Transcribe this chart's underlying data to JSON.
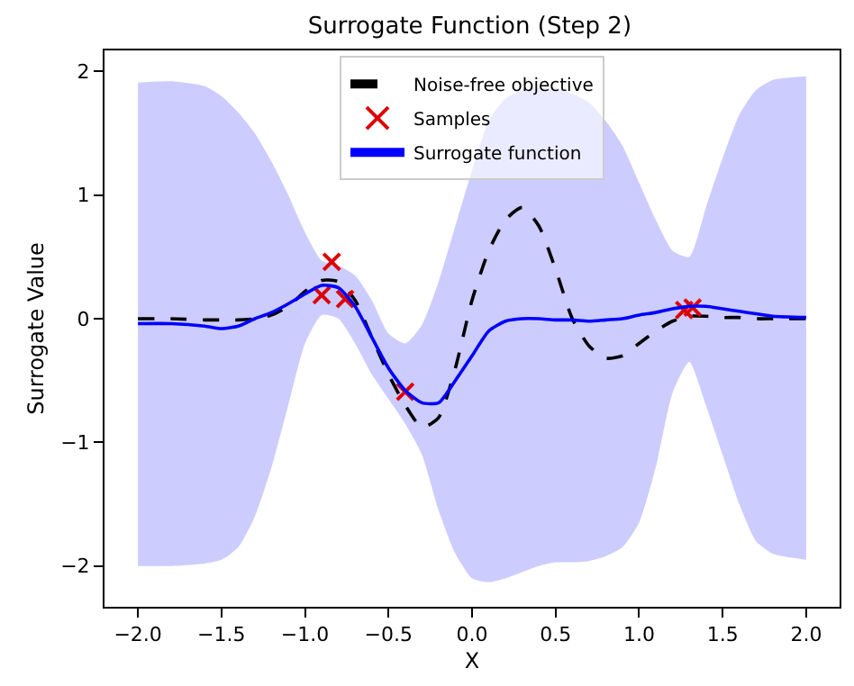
{
  "chart_data": {
    "type": "line",
    "title": "Surrogate Function (Step 2)",
    "xlabel": "X",
    "ylabel": "Surrogate Value",
    "x": [
      -2,
      -1.8,
      -1.6,
      -1.5,
      -1.4,
      -1.3,
      -1.2,
      -1.1,
      -1.0,
      -0.9,
      -0.8,
      -0.7,
      -0.6,
      -0.5,
      -0.4,
      -0.3,
      -0.2,
      -0.1,
      0,
      0.1,
      0.2,
      0.3,
      0.4,
      0.5,
      0.6,
      0.7,
      0.8,
      0.9,
      1.0,
      1.1,
      1.2,
      1.3,
      1.4,
      1.5,
      1.6,
      1.7,
      1.8,
      2.0
    ],
    "series": [
      {
        "name": "Noise-free objective",
        "color": "#000000",
        "line_style": "dashed",
        "values": [
          0.0,
          0.0,
          -0.01,
          -0.01,
          -0.01,
          0.0,
          0.03,
          0.1,
          0.22,
          0.31,
          0.3,
          0.15,
          -0.15,
          -0.45,
          -0.7,
          -0.88,
          -0.8,
          -0.4,
          0.15,
          0.55,
          0.8,
          0.9,
          0.75,
          0.4,
          0.0,
          -0.22,
          -0.32,
          -0.3,
          -0.2,
          -0.1,
          -0.02,
          0.02,
          0.02,
          0.01,
          0.01,
          0.0,
          0.0,
          0.0
        ]
      },
      {
        "name": "Samples",
        "type": "scatter",
        "color": "#dd0000",
        "marker": "cross",
        "x": [
          -0.9,
          -0.84,
          -0.76,
          -0.4,
          1.27,
          1.32
        ],
        "values": [
          0.19,
          0.46,
          0.16,
          -0.59,
          0.07,
          0.09
        ]
      },
      {
        "name": "Surrogate function",
        "color": "#0000ff",
        "line_style": "solid",
        "values": [
          -0.04,
          -0.04,
          -0.06,
          -0.08,
          -0.06,
          0.0,
          0.05,
          0.12,
          0.2,
          0.27,
          0.25,
          0.1,
          -0.15,
          -0.4,
          -0.58,
          -0.68,
          -0.68,
          -0.5,
          -0.3,
          -0.1,
          -0.02,
          0.0,
          0.0,
          -0.01,
          -0.01,
          -0.02,
          -0.01,
          0.0,
          0.03,
          0.05,
          0.08,
          0.1,
          0.1,
          0.08,
          0.06,
          0.04,
          0.02,
          0.01
        ],
        "upper": [
          1.91,
          1.92,
          1.88,
          1.8,
          1.67,
          1.5,
          1.27,
          1.0,
          0.7,
          0.47,
          0.43,
          0.35,
          0.15,
          -0.12,
          -0.2,
          -0.05,
          0.3,
          0.75,
          1.2,
          1.6,
          1.78,
          1.85,
          1.87,
          1.87,
          1.82,
          1.75,
          1.6,
          1.4,
          1.1,
          0.8,
          0.55,
          0.5,
          0.9,
          1.3,
          1.65,
          1.85,
          1.93,
          1.96
        ],
        "lower": [
          -2.0,
          -2.0,
          -1.98,
          -1.95,
          -1.85,
          -1.6,
          -1.2,
          -0.7,
          -0.2,
          0.03,
          0.0,
          -0.2,
          -0.45,
          -0.65,
          -0.85,
          -1.1,
          -1.55,
          -1.9,
          -2.1,
          -2.13,
          -2.1,
          -2.05,
          -2.0,
          -1.97,
          -1.97,
          -1.96,
          -1.92,
          -1.85,
          -1.65,
          -1.2,
          -0.6,
          -0.35,
          -0.7,
          -1.1,
          -1.5,
          -1.8,
          -1.9,
          -1.95
        ]
      }
    ],
    "xlim": [
      -2.2,
      2.2
    ],
    "xticks": [
      {
        "value": -2,
        "label": "−2.0"
      },
      {
        "value": -1.5,
        "label": "−1.5"
      },
      {
        "value": -1,
        "label": "−1.0"
      },
      {
        "value": -0.5,
        "label": "−0.5"
      },
      {
        "value": 0,
        "label": "0.0"
      },
      {
        "value": 0.5,
        "label": "0.5"
      },
      {
        "value": 1,
        "label": "1.0"
      },
      {
        "value": 1.5,
        "label": "1.5"
      },
      {
        "value": 2,
        "label": "2.0"
      }
    ],
    "ylim": [
      -2.33,
      2.17
    ],
    "yticks": [
      {
        "value": -2,
        "label": "−2"
      },
      {
        "value": -1,
        "label": "−1"
      },
      0,
      1,
      2
    ],
    "legend": "top"
  }
}
